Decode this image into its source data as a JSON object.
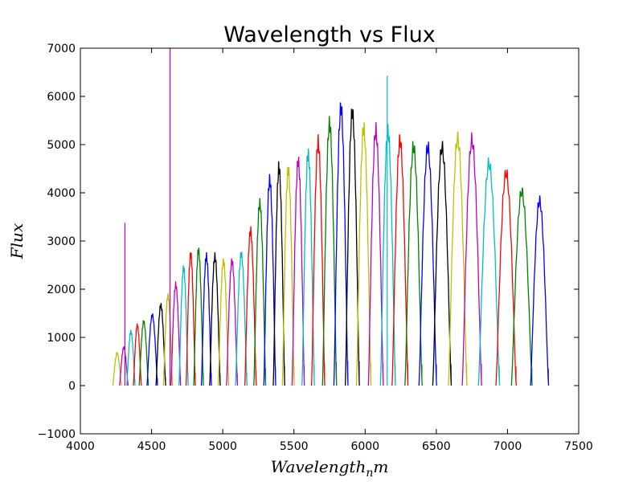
{
  "chart_data": {
    "type": "line",
    "title": "Wavelength vs Flux",
    "xlabel": "Wavelength",
    "xlabel_subscript": "n",
    "xlabel_suffix": "m",
    "ylabel": "Flux",
    "xlim": [
      4000,
      7500
    ],
    "ylim": [
      -1000,
      7000
    ],
    "xticks": [
      4000,
      4500,
      5000,
      5500,
      6000,
      6500,
      7000,
      7500
    ],
    "yticks": [
      -1000,
      0,
      1000,
      2000,
      3000,
      4000,
      5000,
      6000,
      7000
    ],
    "xtick_labels": [
      "4000",
      "4500",
      "5000",
      "5500",
      "6000",
      "6500",
      "7000",
      "7500"
    ],
    "ytick_labels": [
      "−1000",
      "0",
      "1000",
      "2000",
      "3000",
      "4000",
      "5000",
      "6000",
      "7000"
    ],
    "grid": false,
    "legend": "none",
    "color_cycle": [
      "#0000ff",
      "#008000",
      "#ff0000",
      "#00bfbf",
      "#bf00bf",
      "#bfbf00",
      "#000000"
    ],
    "orders": [
      {
        "center": 4258,
        "peak": 620,
        "color": "#bfbf00"
      },
      {
        "center": 4305,
        "peak": 740,
        "color": "#bf00bf"
      },
      {
        "center": 4355,
        "peak": 1080,
        "color": "#00bfbf"
      },
      {
        "center": 4400,
        "peak": 1220,
        "color": "#ff0000"
      },
      {
        "center": 4445,
        "peak": 1300,
        "color": "#008000"
      },
      {
        "center": 4505,
        "peak": 1440,
        "color": "#0000ff"
      },
      {
        "center": 4565,
        "peak": 1650,
        "color": "#000000"
      },
      {
        "center": 4615,
        "peak": 1850,
        "color": "#bfbf00"
      },
      {
        "center": 4670,
        "peak": 2090,
        "color": "#bf00bf"
      },
      {
        "center": 4725,
        "peak": 2450,
        "color": "#00bfbf"
      },
      {
        "center": 4775,
        "peak": 2750,
        "color": "#ff0000"
      },
      {
        "center": 4830,
        "peak": 2830,
        "color": "#008000"
      },
      {
        "center": 4885,
        "peak": 2700,
        "color": "#0000ff"
      },
      {
        "center": 4945,
        "peak": 2700,
        "color": "#000000"
      },
      {
        "center": 5005,
        "peak": 2600,
        "color": "#bfbf00"
      },
      {
        "center": 5065,
        "peak": 2600,
        "color": "#bf00bf"
      },
      {
        "center": 5130,
        "peak": 2750,
        "color": "#00bfbf"
      },
      {
        "center": 5195,
        "peak": 3250,
        "color": "#ff0000"
      },
      {
        "center": 5260,
        "peak": 3850,
        "color": "#008000"
      },
      {
        "center": 5330,
        "peak": 4350,
        "color": "#0000ff"
      },
      {
        "center": 5395,
        "peak": 4600,
        "color": "#000000"
      },
      {
        "center": 5460,
        "peak": 4550,
        "color": "#bfbf00"
      },
      {
        "center": 5530,
        "peak": 4750,
        "color": "#bf00bf"
      },
      {
        "center": 5600,
        "peak": 4900,
        "color": "#00bfbf"
      },
      {
        "center": 5670,
        "peak": 5150,
        "color": "#ff0000"
      },
      {
        "center": 5750,
        "peak": 5550,
        "color": "#008000"
      },
      {
        "center": 5830,
        "peak": 5900,
        "color": "#0000ff"
      },
      {
        "center": 5910,
        "peak": 5800,
        "color": "#000000"
      },
      {
        "center": 5990,
        "peak": 5450,
        "color": "#bfbf00"
      },
      {
        "center": 6075,
        "peak": 5400,
        "color": "#bf00bf"
      },
      {
        "center": 6160,
        "peak": 5400,
        "color": "#00bfbf"
      },
      {
        "center": 6245,
        "peak": 5200,
        "color": "#ff0000"
      },
      {
        "center": 6340,
        "peak": 5050,
        "color": "#008000"
      },
      {
        "center": 6440,
        "peak": 5050,
        "color": "#0000ff"
      },
      {
        "center": 6540,
        "peak": 5050,
        "color": "#000000"
      },
      {
        "center": 6650,
        "peak": 5250,
        "color": "#bfbf00"
      },
      {
        "center": 6750,
        "peak": 5200,
        "color": "#bf00bf"
      },
      {
        "center": 6870,
        "peak": 4700,
        "color": "#00bfbf"
      },
      {
        "center": 6990,
        "peak": 4500,
        "color": "#ff0000"
      },
      {
        "center": 7100,
        "peak": 4100,
        "color": "#008000"
      },
      {
        "center": 7225,
        "peak": 3900,
        "color": "#0000ff"
      }
    ],
    "spikes": [
      {
        "x": 4313,
        "y": 3380,
        "color": "#bf00bf"
      },
      {
        "x": 4630,
        "y": 7000,
        "color": "#bf00bf"
      },
      {
        "x": 6155,
        "y": 6430,
        "color": "#00bfbf"
      }
    ]
  }
}
